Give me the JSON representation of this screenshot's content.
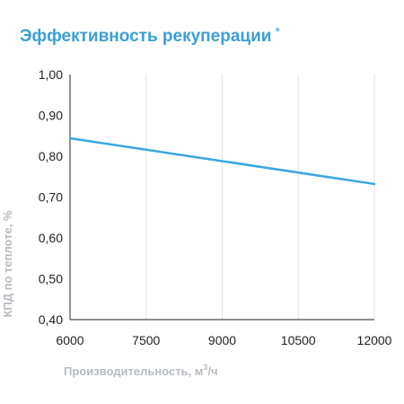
{
  "chart_data": {
    "type": "line",
    "title": "Эффективность рекуперации",
    "title_mark": "*",
    "xlabel": "Производительность, м",
    "xlabel_sup": "3",
    "xlabel_suffix": "/ч",
    "ylabel": "КПД по теплоте, %",
    "x_ticks": [
      "6000",
      "7500",
      "9000",
      "10500",
      "12000"
    ],
    "y_ticks": [
      "0,40",
      "0,50",
      "0,60",
      "0,70",
      "0,80",
      "0,90",
      "1,00"
    ],
    "xlim": [
      6000,
      12000
    ],
    "ylim": [
      0.4,
      1.0
    ],
    "grid": "vertical",
    "series": [
      {
        "x": [
          6000,
          12000
        ],
        "y": [
          0.844,
          0.732
        ],
        "color": "#3aa6e0"
      }
    ]
  }
}
